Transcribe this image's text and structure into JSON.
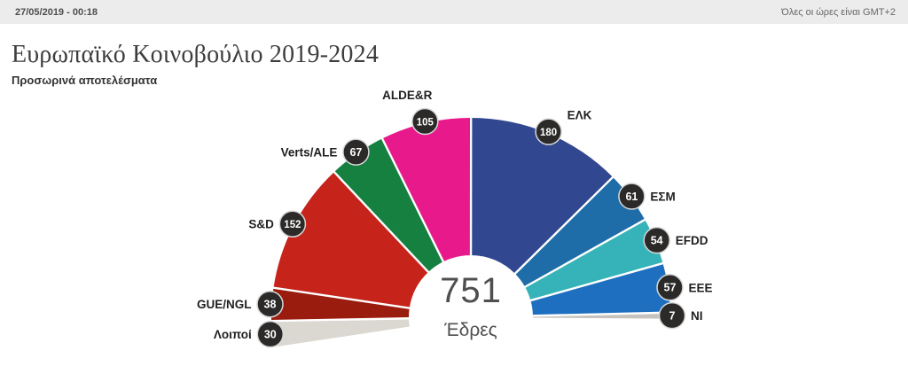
{
  "header": {
    "datetime": "27/05/2019 - 00:18",
    "timezone_note": "Όλες οι ώρες είναι GMT+2"
  },
  "title": "Ευρωπαϊκό Κοινοβούλιο 2019-2024",
  "subtitle": "Προσωρινά αποτελέσματα",
  "chart_data": {
    "type": "pie",
    "subtype": "hemicycle",
    "title": "Ευρωπαϊκό Κοινοβούλιο 2019-2024",
    "subtitle": "Προσωρινά αποτελέσματα",
    "total": {
      "value": 751,
      "label": "Έδρες"
    },
    "order": "left-to-right",
    "groups": [
      {
        "name": "Λοιποί",
        "seats": 30,
        "color": "#dbd7d1"
      },
      {
        "name": "GUE/NGL",
        "seats": 38,
        "color": "#9a1c0f"
      },
      {
        "name": "S&D",
        "seats": 152,
        "color": "#c6231a"
      },
      {
        "name": "Verts/ALE",
        "seats": 67,
        "color": "#15803f"
      },
      {
        "name": "ALDE&R",
        "seats": 105,
        "color": "#e81a8b"
      },
      {
        "name": "ΕΛΚ",
        "seats": 180,
        "color": "#314890"
      },
      {
        "name": "ΕΣΜ",
        "seats": 61,
        "color": "#1f6da8"
      },
      {
        "name": "EFDD",
        "seats": 54,
        "color": "#36b3b9"
      },
      {
        "name": "EEE",
        "seats": 57,
        "color": "#1e6fc0"
      },
      {
        "name": "NI",
        "seats": 7,
        "color": "#c6c3be"
      }
    ],
    "badge": {
      "bg": "#2b2a29",
      "ring": "#d8d8d8",
      "text_color": "#ffffff"
    },
    "label_color": "#1f1f1f",
    "layout_hint": {
      "start_angle_deg": 188.6,
      "end_angle_deg": -0.4,
      "legend": "none",
      "grid": false
    }
  }
}
